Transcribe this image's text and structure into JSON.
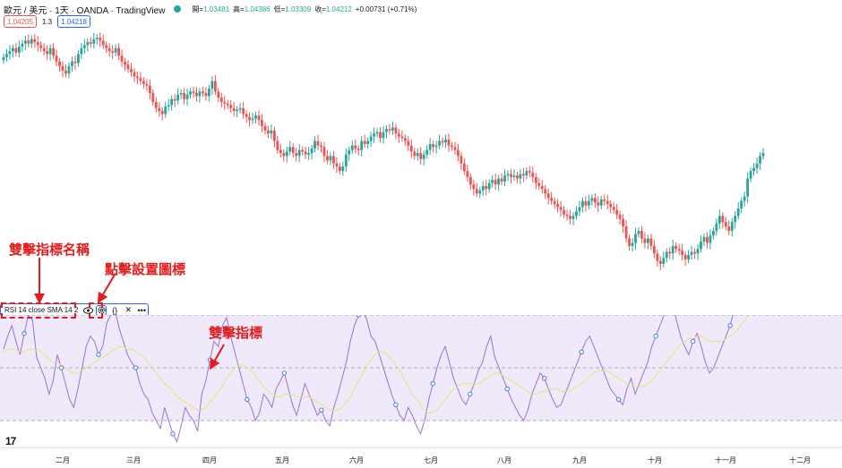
{
  "header": {
    "symbol_text": "歐元 / 美元 · 1天 · OANDA · TradingView",
    "ohlc": [
      {
        "label": "開",
        "value": "1.03481"
      },
      {
        "label": "高",
        "value": "1.04386"
      },
      {
        "label": "低",
        "value": "1.03309"
      },
      {
        "label": "收",
        "value": "1.04212"
      }
    ],
    "change": "+0.00731 (+0.71%)",
    "up_color": "#26a69a"
  },
  "trade": {
    "sell": "1.04205",
    "spread": "1.3",
    "buy": "1.04218"
  },
  "rsi_legend": {
    "title": "RSI 14 close SMA 14 2",
    "eye_icon": "eye-icon",
    "settings_icon": "gear-icon",
    "source_icon": "braces-icon",
    "close_icon": "close-icon",
    "more_icon": "more-icon"
  },
  "annotations": {
    "dbl_click_name": "雙擊指標名稱",
    "click_settings": "點擊設置圖標",
    "dbl_click_indicator": "雙擊指標",
    "color": "#e31c1c"
  },
  "time_axis": {
    "ticks": [
      "二月",
      "三月",
      "四月",
      "五月",
      "六月",
      "七月",
      "八月",
      "九月",
      "十月",
      "十一月",
      "十二月"
    ]
  },
  "colors": {
    "up": "#26a69a",
    "down": "#ef5350",
    "rsi": "#9b72d6",
    "rsi_sma": "#e8e27a",
    "rsi_band": "#efe9fa",
    "accent": "#2962ff"
  },
  "chart_data": [
    {
      "type": "candlestick",
      "title": "歐元 / 美元 · 1天 · OANDA",
      "close": [
        1.106,
        1.108,
        1.11,
        1.112,
        1.109,
        1.113,
        1.115,
        1.117,
        1.115,
        1.118,
        1.116,
        1.114,
        1.112,
        1.11,
        1.108,
        1.112,
        1.107,
        1.103,
        1.1,
        1.097,
        1.095,
        1.1,
        1.103,
        1.102,
        1.108,
        1.112,
        1.114,
        1.116,
        1.115,
        1.118,
        1.119,
        1.117,
        1.114,
        1.112,
        1.11,
        1.109,
        1.112,
        1.107,
        1.103,
        1.101,
        1.098,
        1.096,
        1.093,
        1.092,
        1.09,
        1.088,
        1.087,
        1.082,
        1.076,
        1.072,
        1.07,
        1.068,
        1.073,
        1.074,
        1.078,
        1.077,
        1.081,
        1.082,
        1.078,
        1.081,
        1.083,
        1.082,
        1.08,
        1.083,
        1.082,
        1.08,
        1.085,
        1.09,
        1.083,
        1.079,
        1.076,
        1.075,
        1.074,
        1.072,
        1.07,
        1.071,
        1.072,
        1.068,
        1.066,
        1.064,
        1.065,
        1.067,
        1.064,
        1.06,
        1.057,
        1.055,
        1.057,
        1.05,
        1.044,
        1.042,
        1.04,
        1.043,
        1.046,
        1.042,
        1.04,
        1.044,
        1.043,
        1.041,
        1.042,
        1.045,
        1.05,
        1.047,
        1.046,
        1.04,
        1.037,
        1.04,
        1.035,
        1.033,
        1.03,
        1.033,
        1.041,
        1.044,
        1.047,
        1.045,
        1.044,
        1.05,
        1.048,
        1.05,
        1.053,
        1.055,
        1.056,
        1.052,
        1.056,
        1.058,
        1.057,
        1.059,
        1.055,
        1.053,
        1.052,
        1.05,
        1.047,
        1.043,
        1.04,
        1.042,
        1.038,
        1.041,
        1.044,
        1.048,
        1.046,
        1.047,
        1.05,
        1.049,
        1.051,
        1.047,
        1.046,
        1.044,
        1.04,
        1.035,
        1.03,
        1.026,
        1.021,
        1.018,
        1.015,
        1.017,
        1.02,
        1.018,
        1.022,
        1.024,
        1.021,
        1.025,
        1.023,
        1.027,
        1.028,
        1.026,
        1.027,
        1.025,
        1.028,
        1.027,
        1.03,
        1.029,
        1.026,
        1.022,
        1.02,
        1.018,
        1.015,
        1.012,
        1.01,
        1.008,
        1.006,
        1.004,
        1.001,
        1.0,
        0.998,
        1.0,
        1.003,
        1.006,
        1.01,
        1.007,
        1.01,
        1.012,
        1.009,
        1.007,
        1.011,
        1.01,
        1.008,
        1.006,
        1.004,
        1.001,
        0.998,
        0.993,
        0.985,
        0.98,
        0.982,
        0.988,
        0.99,
        0.985,
        0.982,
        0.985,
        0.98,
        0.975,
        0.97,
        0.968,
        0.972,
        0.976,
        0.975,
        0.98,
        0.978,
        0.977,
        0.974,
        0.971,
        0.974,
        0.976,
        0.975,
        0.978,
        0.983,
        0.986,
        0.982,
        0.987,
        0.99,
        0.995,
        1.0,
        0.996,
        0.993,
        0.99,
        0.996,
        1.0,
        1.005,
        1.01,
        1.013,
        1.025,
        1.03,
        1.032,
        1.035,
        1.04,
        1.042
      ]
    },
    {
      "type": "line",
      "title": "RSI 14 close SMA 14 2",
      "series": [
        {
          "name": "RSI",
          "values": [
            57,
            62,
            66,
            60,
            55,
            63,
            70,
            68,
            54,
            50,
            46,
            40,
            45,
            55,
            50,
            44,
            38,
            35,
            42,
            50,
            58,
            62,
            60,
            55,
            58,
            67,
            70,
            72,
            65,
            60,
            55,
            52,
            50,
            44,
            40,
            38,
            33,
            30,
            27,
            35,
            30,
            25,
            22,
            28,
            35,
            32,
            30,
            26,
            40,
            45,
            53,
            60,
            58,
            66,
            69,
            62,
            56,
            50,
            44,
            38,
            35,
            30,
            33,
            40,
            38,
            35,
            42,
            45,
            48,
            42,
            36,
            32,
            38,
            44,
            40,
            36,
            32,
            34,
            30,
            28,
            35,
            40,
            46,
            52,
            60,
            66,
            70,
            72,
            68,
            62,
            60,
            55,
            50,
            45,
            40,
            36,
            32,
            30,
            35,
            32,
            28,
            25,
            30,
            38,
            44,
            50,
            55,
            58,
            52,
            46,
            42,
            38,
            36,
            40,
            44,
            49,
            52,
            58,
            62,
            54,
            50,
            46,
            42,
            38,
            35,
            32,
            30,
            34,
            40,
            44,
            48,
            46,
            42,
            38,
            35,
            36,
            40,
            44,
            48,
            52,
            56,
            60,
            62,
            58,
            54,
            50,
            46,
            42,
            40,
            38,
            36,
            42,
            46,
            40,
            44,
            48,
            52,
            58,
            62,
            66,
            70,
            72,
            75,
            68,
            62,
            58,
            55,
            60,
            63,
            58,
            52,
            48,
            50,
            54,
            58,
            62,
            66,
            72,
            76,
            80,
            85,
            88,
            90,
            92,
            95
          ]
        },
        {
          "name": "SMA",
          "values": [
            56,
            57,
            57,
            57,
            56,
            56,
            57,
            57,
            57,
            56,
            55,
            53,
            52,
            52,
            51,
            50,
            49,
            48,
            48,
            49,
            50,
            51,
            52,
            53,
            54,
            55,
            56,
            57,
            58,
            58,
            57,
            57,
            56,
            55,
            54,
            52,
            50,
            48,
            46,
            44,
            43,
            41,
            39,
            38,
            37,
            36,
            35,
            34,
            34,
            35,
            37,
            39,
            41,
            43,
            46,
            48,
            50,
            51,
            51,
            50,
            49,
            47,
            45,
            43,
            41,
            40,
            39,
            39,
            40,
            40,
            40,
            39,
            39,
            39,
            39,
            38,
            37,
            36,
            35,
            34,
            34,
            34,
            35,
            37,
            39,
            42,
            45,
            48,
            51,
            53,
            55,
            56,
            56,
            55,
            53,
            51,
            49,
            46,
            43,
            40,
            38,
            36,
            34,
            33,
            33,
            34,
            36,
            38,
            40,
            42,
            43,
            44,
            44,
            44,
            44,
            44,
            45,
            46,
            47,
            48,
            48,
            47,
            46,
            45,
            44,
            43,
            42,
            41,
            40,
            40,
            41,
            41,
            42,
            42,
            42,
            41,
            41,
            41,
            42,
            43,
            44,
            45,
            47,
            48,
            49,
            49,
            49,
            48,
            47,
            46,
            45,
            44,
            43,
            43,
            43,
            43,
            44,
            45,
            47,
            49,
            51,
            53,
            55,
            57,
            59,
            60,
            61,
            61,
            62,
            62,
            61,
            60,
            60,
            60,
            60,
            61,
            62,
            63,
            65,
            67,
            69,
            71,
            73,
            75,
            77
          ]
        }
      ],
      "ylim": [
        0,
        100
      ],
      "bands": {
        "upper": 70,
        "middle": 50,
        "lower": 30
      }
    }
  ]
}
